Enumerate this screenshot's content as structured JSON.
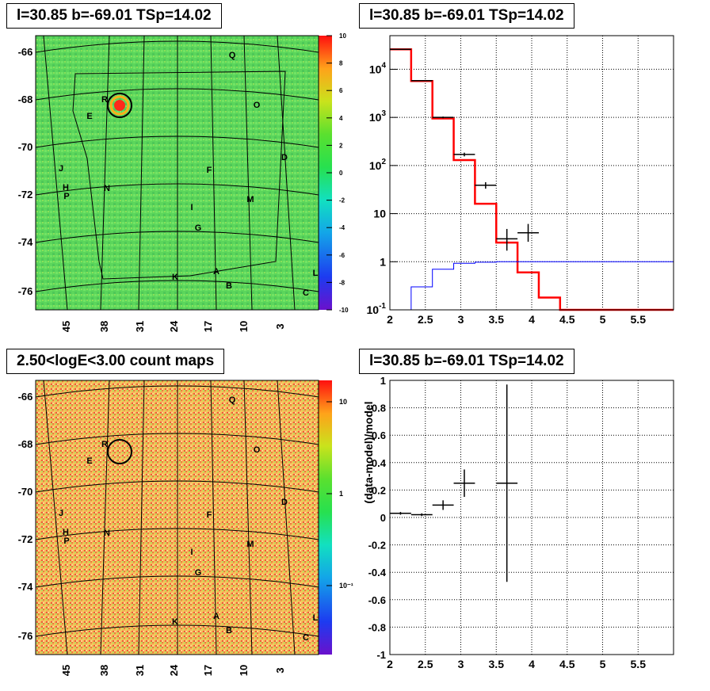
{
  "panels": {
    "sig_map_title": "l=30.85 b=-69.01 TSp=14.02",
    "spectrum_title": "l=30.85 b=-69.01 TSp=14.02",
    "count_map_title": "2.50<logE<3.00 count maps",
    "residual_title": "l=30.85 b=-69.01 TSp=14.02",
    "residual_ylabel": "(data-model)/model"
  },
  "colors": {
    "background": "#ffffff",
    "model_line": "#ff0000",
    "background_model_line": "#0000ff",
    "data_points": "#000000"
  },
  "maps": {
    "lat_ticks": [
      "-66",
      "-68",
      "-70",
      "-72",
      "-74",
      "-76"
    ],
    "lon_ticks": [
      "45",
      "38",
      "31",
      "24",
      "17",
      "10",
      "3"
    ],
    "region_labels": [
      "Q",
      "R",
      "O",
      "E",
      "D",
      "J",
      "F",
      "H",
      "P",
      "N",
      "M",
      "I",
      "G",
      "A",
      "K",
      "B",
      "L",
      "C"
    ],
    "sig_colorbar_ticks": [
      "10",
      "8",
      "6",
      "4",
      "2",
      "0",
      "-2",
      "-4",
      "-6",
      "-8",
      "-10"
    ],
    "count_colorbar_ticks": [
      "10",
      "1",
      "10⁻¹"
    ]
  },
  "chart_data": [
    {
      "type": "line",
      "panel": "spectrum",
      "xlim": [
        2,
        6
      ],
      "ylim": [
        0.1,
        50000
      ],
      "log_y": true,
      "grid": true,
      "x_ticks": [
        "2",
        "2.5",
        "3",
        "3.5",
        "4",
        "4.5",
        "5",
        "5.5"
      ],
      "y_ticks": [
        "10^4",
        "10^3",
        "10^2",
        "10",
        "1",
        "10^-1"
      ],
      "series": [
        {
          "role": "model_total",
          "style": "step",
          "bin_edges": [
            2.0,
            2.3,
            2.6,
            2.9,
            3.2,
            3.5,
            3.8,
            4.1,
            4.4,
            6.0
          ],
          "values": [
            26000,
            5700,
            950,
            130,
            16,
            2.5,
            0.6,
            0.18,
            0.1
          ]
        },
        {
          "role": "background_model",
          "style": "step",
          "bin_edges": [
            2.0,
            2.3,
            2.6,
            2.9,
            3.2,
            3.5,
            6.0
          ],
          "values": [
            0.04,
            0.3,
            0.7,
            0.93,
            0.98,
            1.0
          ]
        },
        {
          "role": "data",
          "style": "errorbar",
          "points": [
            {
              "x": 2.15,
              "xerr": 0.15,
              "y": 26000,
              "ylo": 25800,
              "yhi": 26200
            },
            {
              "x": 2.45,
              "xerr": 0.15,
              "y": 5800,
              "ylo": 5700,
              "yhi": 5900
            },
            {
              "x": 2.75,
              "xerr": 0.15,
              "y": 1000,
              "ylo": 960,
              "yhi": 1040
            },
            {
              "x": 3.05,
              "xerr": 0.15,
              "y": 170,
              "ylo": 155,
              "yhi": 185
            },
            {
              "x": 3.35,
              "xerr": 0.15,
              "y": 39,
              "ylo": 33,
              "yhi": 45
            },
            {
              "x": 3.65,
              "xerr": 0.15,
              "y": 3,
              "ylo": 1.7,
              "yhi": 4.8
            },
            {
              "x": 3.95,
              "xerr": 0.15,
              "y": 4,
              "ylo": 2.6,
              "yhi": 6.1
            }
          ]
        }
      ]
    },
    {
      "type": "scatter",
      "panel": "residual",
      "xlim": [
        2,
        6
      ],
      "ylim": [
        -1,
        1
      ],
      "grid": true,
      "x_ticks": [
        "2",
        "2.5",
        "3",
        "3.5",
        "4",
        "4.5",
        "5",
        "5.5"
      ],
      "y_ticks": [
        "1",
        "0.8",
        "0.6",
        "0.4",
        "0.2",
        "0",
        "-0.2",
        "-0.4",
        "-0.6",
        "-0.8",
        "-1"
      ],
      "points": [
        {
          "x": 2.15,
          "xerr": 0.15,
          "y": 0.03,
          "yerr": 0.01
        },
        {
          "x": 2.45,
          "xerr": 0.15,
          "y": 0.02,
          "yerr": 0.01
        },
        {
          "x": 2.75,
          "xerr": 0.15,
          "y": 0.09,
          "yerr": 0.035
        },
        {
          "x": 3.05,
          "xerr": 0.15,
          "y": 0.25,
          "yerr": 0.1
        },
        {
          "x": 3.65,
          "xerr": 0.15,
          "y": 0.25,
          "yerr": 0.72
        }
      ]
    }
  ]
}
